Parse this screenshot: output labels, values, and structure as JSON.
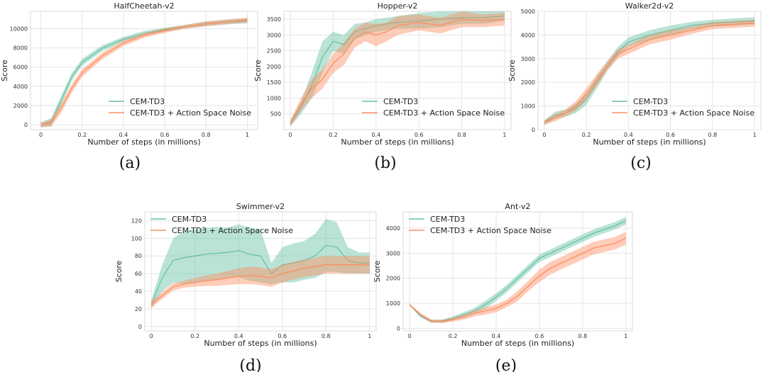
{
  "colors": {
    "series_0": "#66c2a5",
    "series_1": "#fc8d62",
    "grid": "#e5e5e5"
  },
  "chart_data": [
    {
      "type": "line",
      "title": "HalfCheetah-v2",
      "xlabel": "Number of steps (in millions)",
      "ylabel": "Score",
      "caption": "(a)",
      "xlim": [
        -0.05,
        1.05
      ],
      "ylim": [
        -500,
        11800
      ],
      "xticks": [
        0.0,
        0.2,
        0.4,
        0.6,
        0.8,
        1.0
      ],
      "yticks": [
        0,
        2000,
        4000,
        6000,
        8000,
        10000
      ],
      "legend_position": "lower-right",
      "x": [
        0.0,
        0.05,
        0.1,
        0.15,
        0.2,
        0.3,
        0.4,
        0.5,
        0.6,
        0.7,
        0.8,
        0.9,
        1.0
      ],
      "series": [
        {
          "name": "CEM-TD3",
          "values": [
            0,
            300,
            2600,
            5000,
            6500,
            8000,
            8900,
            9500,
            9900,
            10200,
            10500,
            10700,
            10800
          ],
          "band": [
            250,
            400,
            500,
            400,
            350,
            300,
            250,
            250,
            200,
            200,
            250,
            250,
            250
          ]
        },
        {
          "name": "CEM-TD3 + Action Space Noise",
          "values": [
            0,
            200,
            1800,
            3800,
            5400,
            7200,
            8500,
            9300,
            9800,
            10200,
            10500,
            10700,
            10900
          ],
          "band": [
            250,
            400,
            500,
            450,
            400,
            350,
            300,
            250,
            250,
            200,
            250,
            250,
            250
          ]
        }
      ]
    },
    {
      "type": "line",
      "title": "Hopper-v2",
      "xlabel": "Number of steps (in millions)",
      "ylabel": "Score",
      "caption": "(b)",
      "xlim": [
        -0.03,
        1.03
      ],
      "ylim": [
        0,
        3750
      ],
      "xticks": [
        0.0,
        0.2,
        0.4,
        0.6,
        0.8,
        1.0
      ],
      "yticks": [
        500,
        1000,
        1500,
        2000,
        2500,
        3000,
        3500
      ],
      "legend_position": "lower-right",
      "x": [
        0.0,
        0.05,
        0.1,
        0.15,
        0.2,
        0.25,
        0.3,
        0.35,
        0.4,
        0.45,
        0.5,
        0.6,
        0.7,
        0.8,
        0.9,
        1.0
      ],
      "series": [
        {
          "name": "CEM-TD3",
          "values": [
            200,
            700,
            1400,
            2300,
            2800,
            2700,
            3100,
            3200,
            3300,
            3350,
            3400,
            3450,
            3500,
            3550,
            3550,
            3600
          ],
          "band": [
            100,
            200,
            400,
            500,
            300,
            300,
            250,
            200,
            200,
            200,
            200,
            250,
            250,
            200,
            200,
            150
          ]
        },
        {
          "name": "CEM-TD3 + Action Space Noise",
          "values": [
            200,
            800,
            1300,
            1600,
            2100,
            2400,
            2900,
            3100,
            3000,
            3100,
            3300,
            3400,
            3300,
            3500,
            3450,
            3500
          ],
          "band": [
            100,
            200,
            300,
            300,
            300,
            350,
            300,
            300,
            350,
            300,
            300,
            250,
            250,
            250,
            200,
            200
          ]
        }
      ]
    },
    {
      "type": "line",
      "title": "Walker2d-v2",
      "xlabel": "Number of steps (in millions)",
      "ylabel": "Score",
      "caption": "(c)",
      "xlim": [
        -0.03,
        1.03
      ],
      "ylim": [
        0,
        5000
      ],
      "xticks": [
        0.0,
        0.2,
        0.4,
        0.6,
        0.8,
        1.0
      ],
      "yticks": [
        0,
        1000,
        2000,
        3000,
        4000,
        5000
      ],
      "legend_position": "lower-right",
      "x": [
        0.0,
        0.05,
        0.1,
        0.15,
        0.2,
        0.25,
        0.3,
        0.35,
        0.4,
        0.5,
        0.6,
        0.7,
        0.8,
        0.9,
        1.0
      ],
      "series": [
        {
          "name": "CEM-TD3",
          "values": [
            300,
            600,
            700,
            900,
            1300,
            2000,
            2700,
            3300,
            3700,
            4000,
            4200,
            4400,
            4500,
            4550,
            4600
          ],
          "band": [
            100,
            150,
            150,
            200,
            250,
            250,
            200,
            200,
            200,
            200,
            200,
            150,
            150,
            150,
            150
          ]
        },
        {
          "name": "CEM-TD3 + Action Space Noise",
          "values": [
            300,
            500,
            700,
            1000,
            1500,
            2100,
            2700,
            3200,
            3400,
            3800,
            4000,
            4200,
            4400,
            4450,
            4500
          ],
          "band": [
            100,
            150,
            150,
            200,
            250,
            250,
            200,
            200,
            200,
            200,
            200,
            150,
            150,
            150,
            150
          ]
        }
      ]
    },
    {
      "type": "line",
      "title": "Swimmer-v2",
      "xlabel": "Number of steps (in millions)",
      "ylabel": "Score",
      "caption": "(d)",
      "xlim": [
        -0.03,
        1.03
      ],
      "ylim": [
        -5,
        130
      ],
      "xticks": [
        0.0,
        0.2,
        0.4,
        0.6,
        0.8,
        1.0
      ],
      "yticks": [
        0,
        20,
        40,
        60,
        80,
        100,
        120
      ],
      "legend_position": "upper-left",
      "x": [
        0.0,
        0.05,
        0.1,
        0.15,
        0.2,
        0.25,
        0.3,
        0.35,
        0.4,
        0.45,
        0.5,
        0.55,
        0.6,
        0.65,
        0.7,
        0.75,
        0.8,
        0.85,
        0.9,
        0.95,
        1.0
      ],
      "series": [
        {
          "name": "CEM-TD3",
          "values": [
            25,
            55,
            75,
            78,
            80,
            82,
            83,
            84,
            86,
            82,
            80,
            60,
            70,
            72,
            75,
            80,
            92,
            90,
            75,
            72,
            72
          ],
          "band": [
            5,
            15,
            25,
            30,
            30,
            30,
            30,
            28,
            30,
            30,
            30,
            12,
            20,
            22,
            22,
            25,
            30,
            28,
            15,
            12,
            12
          ]
        },
        {
          "name": "CEM-TD3 + Action Space Noise",
          "values": [
            25,
            35,
            45,
            48,
            50,
            52,
            53,
            55,
            57,
            58,
            57,
            55,
            60,
            63,
            66,
            68,
            70,
            70,
            70,
            70,
            70
          ],
          "band": [
            4,
            4,
            4,
            4,
            5,
            6,
            7,
            8,
            9,
            10,
            10,
            10,
            10,
            10,
            10,
            10,
            10,
            10,
            10,
            10,
            10
          ]
        }
      ]
    },
    {
      "type": "line",
      "title": "Ant-v2",
      "xlabel": "Number of steps (in millions)",
      "ylabel": "Score",
      "caption": "(e)",
      "xlim": [
        -0.03,
        1.03
      ],
      "ylim": [
        -100,
        4650
      ],
      "xticks": [
        0.0,
        0.2,
        0.4,
        0.6,
        0.8,
        1.0
      ],
      "yticks": [
        0,
        1000,
        2000,
        3000,
        4000
      ],
      "legend_position": "upper-left",
      "x": [
        0.0,
        0.05,
        0.1,
        0.15,
        0.2,
        0.25,
        0.3,
        0.35,
        0.4,
        0.45,
        0.5,
        0.55,
        0.6,
        0.65,
        0.7,
        0.75,
        0.8,
        0.85,
        0.9,
        0.95,
        1.0
      ],
      "series": [
        {
          "name": "CEM-TD3",
          "values": [
            950,
            500,
            280,
            300,
            400,
            550,
            700,
            950,
            1250,
            1600,
            2000,
            2400,
            2800,
            3000,
            3200,
            3400,
            3600,
            3800,
            3950,
            4100,
            4300
          ],
          "band": [
            30,
            60,
            60,
            60,
            80,
            100,
            120,
            150,
            150,
            150,
            150,
            150,
            150,
            150,
            150,
            150,
            150,
            150,
            150,
            150,
            150
          ]
        },
        {
          "name": "CEM-TD3 + Action Space Noise",
          "values": [
            950,
            550,
            300,
            270,
            350,
            450,
            600,
            700,
            800,
            1000,
            1300,
            1700,
            2100,
            2400,
            2600,
            2800,
            3000,
            3200,
            3300,
            3400,
            3600
          ],
          "band": [
            30,
            60,
            60,
            60,
            80,
            100,
            120,
            150,
            150,
            150,
            200,
            200,
            250,
            250,
            250,
            250,
            250,
            250,
            250,
            250,
            250
          ]
        }
      ]
    }
  ]
}
